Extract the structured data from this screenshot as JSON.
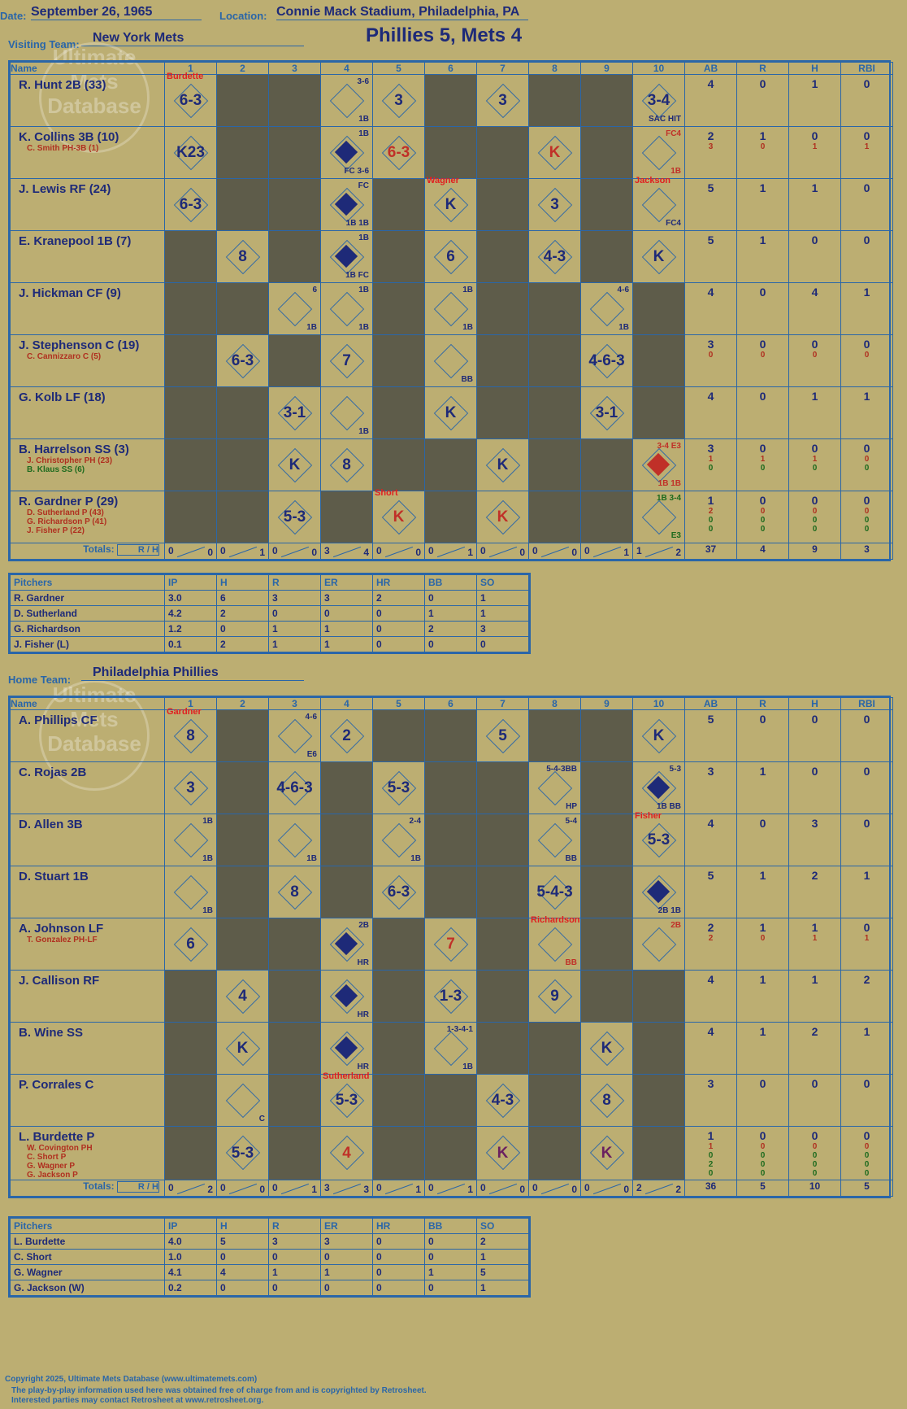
{
  "header": {
    "date_label": "Date:",
    "date": "September 26, 1965",
    "location_label": "Location:",
    "location": "Connie Mack Stadium, Philadelphia, PA",
    "visiting_label": "Visiting Team:",
    "visiting_team": "New York Mets",
    "title": "Phillies 5, Mets 4"
  },
  "cols": {
    "name": "Name",
    "innings": [
      "1",
      "2",
      "3",
      "4",
      "5",
      "6",
      "7",
      "8",
      "9",
      "10"
    ],
    "ab": "AB",
    "r": "R",
    "h": "H",
    "rbi": "RBI",
    "totals": "Totals:",
    "rh_r": "R",
    "rh_h": "H"
  },
  "visitors": {
    "rows": [
      {
        "name": "R. Hunt 2B (33)",
        "subs": [],
        "ab": [
          "4"
        ],
        "r": [
          "0"
        ],
        "h": [
          "1"
        ],
        "rbi": [
          "0"
        ]
      },
      {
        "name": "K. Collins 3B (10)",
        "subs": [
          "C. Smith PH-3B (1)"
        ],
        "ab": [
          "2",
          "3"
        ],
        "r": [
          "1",
          "0"
        ],
        "h": [
          "0",
          "1"
        ],
        "rbi": [
          "0",
          "1"
        ]
      },
      {
        "name": "J. Lewis RF (24)",
        "subs": [],
        "ab": [
          "5"
        ],
        "r": [
          "1"
        ],
        "h": [
          "1"
        ],
        "rbi": [
          "0"
        ]
      },
      {
        "name": "E. Kranepool 1B (7)",
        "subs": [],
        "ab": [
          "5"
        ],
        "r": [
          "1"
        ],
        "h": [
          "0"
        ],
        "rbi": [
          "0"
        ]
      },
      {
        "name": "J. Hickman CF (9)",
        "subs": [],
        "ab": [
          "4"
        ],
        "r": [
          "0"
        ],
        "h": [
          "4"
        ],
        "rbi": [
          "1"
        ]
      },
      {
        "name": "J. Stephenson C (19)",
        "subs": [
          "C. Cannizzaro C (5)"
        ],
        "ab": [
          "3",
          "0"
        ],
        "r": [
          "0",
          "0"
        ],
        "h": [
          "0",
          "0"
        ],
        "rbi": [
          "0",
          "0"
        ]
      },
      {
        "name": "G. Kolb LF (18)",
        "subs": [],
        "ab": [
          "4"
        ],
        "r": [
          "0"
        ],
        "h": [
          "1"
        ],
        "rbi": [
          "1"
        ]
      },
      {
        "name": "B. Harrelson SS (3)",
        "subs": [
          "J. Christopher PH (23)",
          "B. Klaus SS (6)"
        ],
        "ab": [
          "3",
          "1",
          "0"
        ],
        "r": [
          "0",
          "1",
          "0"
        ],
        "h": [
          "0",
          "1",
          "0"
        ],
        "rbi": [
          "0",
          "0",
          "0"
        ]
      },
      {
        "name": "R. Gardner P (29)",
        "subs": [
          "D. Sutherland P (43)",
          "G. Richardson P (41)",
          "J. Fisher P (22)"
        ],
        "ab": [
          "1",
          "2",
          "0",
          "0"
        ],
        "r": [
          "0",
          "0",
          "0",
          "0"
        ],
        "h": [
          "0",
          "0",
          "0",
          "0"
        ],
        "rbi": [
          "0",
          "0",
          "0",
          "0"
        ]
      }
    ],
    "totals": {
      "inn": [
        [
          "0",
          "0"
        ],
        [
          "0",
          "1"
        ],
        [
          "0",
          "0"
        ],
        [
          "3",
          "4"
        ],
        [
          "0",
          "0"
        ],
        [
          "0",
          "1"
        ],
        [
          "0",
          "0"
        ],
        [
          "0",
          "0"
        ],
        [
          "0",
          "1"
        ],
        [
          "1",
          "2"
        ]
      ],
      "ab": "37",
      "r": "4",
      "h": "9",
      "rbi": "3"
    },
    "plays": [
      [
        {
          "i": 0,
          "t": "6-3",
          "tag": "Burdette"
        },
        {
          "i": 3,
          "t": "",
          "a": "3-6",
          "b": "1B"
        },
        {
          "i": 4,
          "t": "3"
        },
        {
          "i": 6,
          "t": "3"
        },
        {
          "i": 9,
          "t": "3-4",
          "b": "SAC HIT"
        }
      ],
      [
        {
          "i": 0,
          "t": "K23"
        },
        {
          "i": 3,
          "t": "",
          "a": "1B",
          "b": "FC 3-6",
          "run": true
        },
        {
          "i": 4,
          "t": "6-3",
          "red": true
        },
        {
          "i": 7,
          "t": "K",
          "red": true
        },
        {
          "i": 9,
          "t": "",
          "a": "FC4",
          "b": "1B",
          "red": true
        }
      ],
      [
        {
          "i": 0,
          "t": "6-3"
        },
        {
          "i": 3,
          "t": "",
          "a": "FC",
          "b": "1B 1B",
          "run": true
        },
        {
          "i": 5,
          "t": "K",
          "tag": "Wagner"
        },
        {
          "i": 7,
          "t": "3"
        },
        {
          "i": 9,
          "t": "",
          "b": "FC4",
          "tag": "Jackson"
        }
      ],
      [
        {
          "i": 1,
          "t": "8"
        },
        {
          "i": 3,
          "t": "",
          "a": "1B",
          "b": "1B FC",
          "run": true
        },
        {
          "i": 5,
          "t": "6"
        },
        {
          "i": 7,
          "t": "4-3"
        },
        {
          "i": 9,
          "t": "K"
        }
      ],
      [
        {
          "i": 2,
          "t": "",
          "a": "6",
          "b": "1B"
        },
        {
          "i": 3,
          "t": "",
          "a": "1B",
          "b": "1B"
        },
        {
          "i": 5,
          "t": "",
          "a": "1B",
          "b": "1B"
        },
        {
          "i": 8,
          "t": "",
          "a": "4-6",
          "b": "1B"
        }
      ],
      [
        {
          "i": 1,
          "t": "6-3"
        },
        {
          "i": 3,
          "t": "7"
        },
        {
          "i": 5,
          "t": "",
          "b": "BB"
        },
        {
          "i": 8,
          "t": "4-6-3"
        }
      ],
      [
        {
          "i": 2,
          "t": "3-1"
        },
        {
          "i": 3,
          "t": "",
          "b": "1B"
        },
        {
          "i": 5,
          "t": "K"
        },
        {
          "i": 8,
          "t": "3-1"
        }
      ],
      [
        {
          "i": 2,
          "t": "K"
        },
        {
          "i": 3,
          "t": "8"
        },
        {
          "i": 6,
          "t": "K"
        },
        {
          "i": 9,
          "t": "",
          "a": "3-4 E3",
          "b": "1B 1B",
          "run": true,
          "red": true
        }
      ],
      [
        {
          "i": 2,
          "t": "5-3"
        },
        {
          "i": 4,
          "t": "K",
          "red": true,
          "tag": "Short"
        },
        {
          "i": 6,
          "t": "K",
          "red": true
        },
        {
          "i": 9,
          "t": "",
          "a": "1B 3-4",
          "b": "E3",
          "green": true
        }
      ]
    ]
  },
  "visiting_pitchers": {
    "cols": [
      "Pitchers",
      "IP",
      "H",
      "R",
      "ER",
      "HR",
      "BB",
      "SO"
    ],
    "rows": [
      [
        "R. Gardner",
        "3.0",
        "6",
        "3",
        "3",
        "2",
        "0",
        "1"
      ],
      [
        "D. Sutherland",
        "4.2",
        "2",
        "0",
        "0",
        "0",
        "1",
        "1"
      ],
      [
        "G. Richardson",
        "1.2",
        "0",
        "1",
        "1",
        "0",
        "2",
        "3"
      ],
      [
        "J. Fisher (L)",
        "0.1",
        "2",
        "1",
        "1",
        "0",
        "0",
        "0"
      ]
    ]
  },
  "home_label": "Home Team:",
  "home_team": "Philadelphia Phillies",
  "home": {
    "rows": [
      {
        "name": "A. Phillips CF",
        "subs": [],
        "ab": [
          "5"
        ],
        "r": [
          "0"
        ],
        "h": [
          "0"
        ],
        "rbi": [
          "0"
        ]
      },
      {
        "name": "C. Rojas 2B",
        "subs": [],
        "ab": [
          "3"
        ],
        "r": [
          "1"
        ],
        "h": [
          "0"
        ],
        "rbi": [
          "0"
        ]
      },
      {
        "name": "D. Allen 3B",
        "subs": [],
        "ab": [
          "4"
        ],
        "r": [
          "0"
        ],
        "h": [
          "3"
        ],
        "rbi": [
          "0"
        ]
      },
      {
        "name": "D. Stuart 1B",
        "subs": [],
        "ab": [
          "5"
        ],
        "r": [
          "1"
        ],
        "h": [
          "2"
        ],
        "rbi": [
          "1"
        ]
      },
      {
        "name": "A. Johnson LF",
        "subs": [
          "T. Gonzalez PH-LF"
        ],
        "ab": [
          "2",
          "2"
        ],
        "r": [
          "1",
          "0"
        ],
        "h": [
          "1",
          "1"
        ],
        "rbi": [
          "0",
          "1"
        ]
      },
      {
        "name": "J. Callison RF",
        "subs": [],
        "ab": [
          "4"
        ],
        "r": [
          "1"
        ],
        "h": [
          "1"
        ],
        "rbi": [
          "2"
        ]
      },
      {
        "name": "B. Wine SS",
        "subs": [],
        "ab": [
          "4"
        ],
        "r": [
          "1"
        ],
        "h": [
          "2"
        ],
        "rbi": [
          "1"
        ]
      },
      {
        "name": "P. Corrales C",
        "subs": [],
        "ab": [
          "3"
        ],
        "r": [
          "0"
        ],
        "h": [
          "0"
        ],
        "rbi": [
          "0"
        ]
      },
      {
        "name": "L. Burdette P",
        "subs": [
          "W. Covington PH",
          "C. Short P",
          "G. Wagner P",
          "G. Jackson P"
        ],
        "ab": [
          "1",
          "1",
          "0",
          "2",
          "0"
        ],
        "r": [
          "0",
          "0",
          "0",
          "0",
          "0"
        ],
        "h": [
          "0",
          "0",
          "0",
          "0",
          "0"
        ],
        "rbi": [
          "0",
          "0",
          "0",
          "0",
          "0"
        ]
      }
    ],
    "totals": {
      "inn": [
        [
          "0",
          "2"
        ],
        [
          "0",
          "0"
        ],
        [
          "0",
          "1"
        ],
        [
          "3",
          "3"
        ],
        [
          "0",
          "1"
        ],
        [
          "0",
          "1"
        ],
        [
          "0",
          "0"
        ],
        [
          "0",
          "0"
        ],
        [
          "0",
          "0"
        ],
        [
          "2",
          "2"
        ]
      ],
      "ab": "36",
      "r": "5",
      "h": "10",
      "rbi": "5"
    },
    "plays": [
      [
        {
          "i": 0,
          "t": "8",
          "tag": "Gardner"
        },
        {
          "i": 2,
          "t": "",
          "a": "4-6",
          "b": "E6"
        },
        {
          "i": 3,
          "t": "2"
        },
        {
          "i": 6,
          "t": "5"
        },
        {
          "i": 9,
          "t": "K"
        }
      ],
      [
        {
          "i": 0,
          "t": "3"
        },
        {
          "i": 2,
          "t": "4-6-3"
        },
        {
          "i": 4,
          "t": "5-3"
        },
        {
          "i": 7,
          "t": "",
          "a": "5-4-3BB",
          "b": "HP"
        },
        {
          "i": 9,
          "t": "",
          "a": "5-3",
          "b": "1B BB",
          "run": true
        }
      ],
      [
        {
          "i": 0,
          "t": "",
          "a": "1B",
          "b": "1B"
        },
        {
          "i": 2,
          "t": "",
          "b": "1B"
        },
        {
          "i": 4,
          "t": "",
          "a": "2-4",
          "b": "1B"
        },
        {
          "i": 7,
          "t": "",
          "a": "5-4",
          "b": "BB"
        },
        {
          "i": 9,
          "t": "5-3",
          "tag": "Fisher"
        }
      ],
      [
        {
          "i": 0,
          "t": "",
          "b": "1B"
        },
        {
          "i": 2,
          "t": "8"
        },
        {
          "i": 4,
          "t": "6-3"
        },
        {
          "i": 7,
          "t": "5-4-3"
        },
        {
          "i": 9,
          "t": "",
          "b": "2B 1B",
          "run": true
        }
      ],
      [
        {
          "i": 0,
          "t": "6"
        },
        {
          "i": 3,
          "t": "",
          "a": "2B",
          "b": "HR",
          "run": true
        },
        {
          "i": 5,
          "t": "7",
          "red": true
        },
        {
          "i": 7,
          "t": "",
          "b": "BB",
          "tag": "Richardson",
          "red": true
        },
        {
          "i": 9,
          "t": "",
          "a": "2B",
          "red": true
        }
      ],
      [
        {
          "i": 1,
          "t": "4"
        },
        {
          "i": 3,
          "t": "",
          "b": "HR",
          "run": true
        },
        {
          "i": 5,
          "t": "1-3"
        },
        {
          "i": 7,
          "t": "9"
        }
      ],
      [
        {
          "i": 1,
          "t": "K"
        },
        {
          "i": 3,
          "t": "",
          "b": "HR",
          "run": true
        },
        {
          "i": 5,
          "t": "",
          "a": "1-3-4-1",
          "b": "1B"
        },
        {
          "i": 8,
          "t": "K"
        }
      ],
      [
        {
          "i": 1,
          "t": "",
          "b": "C"
        },
        {
          "i": 3,
          "t": "5-3",
          "tag": "Sutherland"
        },
        {
          "i": 6,
          "t": "4-3"
        },
        {
          "i": 8,
          "t": "8"
        }
      ],
      [
        {
          "i": 1,
          "t": "5-3"
        },
        {
          "i": 3,
          "t": "4",
          "red": true
        },
        {
          "i": 6,
          "t": "K",
          "purple": true
        },
        {
          "i": 8,
          "t": "K",
          "purple": true
        }
      ]
    ]
  },
  "home_pitchers": {
    "cols": [
      "Pitchers",
      "IP",
      "H",
      "R",
      "ER",
      "HR",
      "BB",
      "SO"
    ],
    "rows": [
      [
        "L. Burdette",
        "4.0",
        "5",
        "3",
        "3",
        "0",
        "0",
        "2"
      ],
      [
        "C. Short",
        "1.0",
        "0",
        "0",
        "0",
        "0",
        "0",
        "1"
      ],
      [
        "G. Wagner",
        "4.1",
        "4",
        "1",
        "1",
        "0",
        "1",
        "5"
      ],
      [
        "G. Jackson (W)",
        "0.2",
        "0",
        "0",
        "0",
        "0",
        "0",
        "1"
      ]
    ]
  },
  "watermark": {
    "line1": "Ultimate",
    "line2": "Mets",
    "line3": "Database",
    "url": "ultimatemets.com"
  },
  "footer": {
    "l1": "Copyright 2025, Ultimate Mets Database (www.ultimatemets.com)",
    "l2": "The play-by-play information used here was obtained free of charge from and is copyrighted by Retrosheet.",
    "l3": "Interested parties may contact Retrosheet at www.retrosheet.org."
  },
  "dark_cells": {
    "visitors": [
      [
        1,
        2,
        5,
        7,
        8
      ],
      [
        1,
        2,
        5,
        6,
        8
      ],
      [
        1,
        2,
        4,
        6,
        8
      ],
      [
        0,
        2,
        4,
        6,
        8
      ],
      [
        0,
        1,
        4,
        6,
        7,
        9
      ],
      [
        0,
        2,
        4,
        6,
        7,
        9
      ],
      [
        0,
        1,
        4,
        6,
        7,
        9
      ],
      [
        0,
        1,
        4,
        5,
        7,
        8
      ],
      [
        0,
        1,
        3,
        5,
        7,
        8
      ]
    ],
    "home": [
      [
        1,
        4,
        5,
        7,
        8
      ],
      [
        1,
        3,
        5,
        6,
        8
      ],
      [
        1,
        3,
        5,
        6,
        8
      ],
      [
        1,
        3,
        5,
        6,
        8
      ],
      [
        1,
        2,
        4,
        6,
        8
      ],
      [
        0,
        2,
        4,
        6,
        8,
        9
      ],
      [
        0,
        2,
        4,
        6,
        7,
        9
      ],
      [
        0,
        2,
        4,
        5,
        7,
        9
      ],
      [
        0,
        2,
        4,
        5,
        7,
        9
      ]
    ]
  }
}
